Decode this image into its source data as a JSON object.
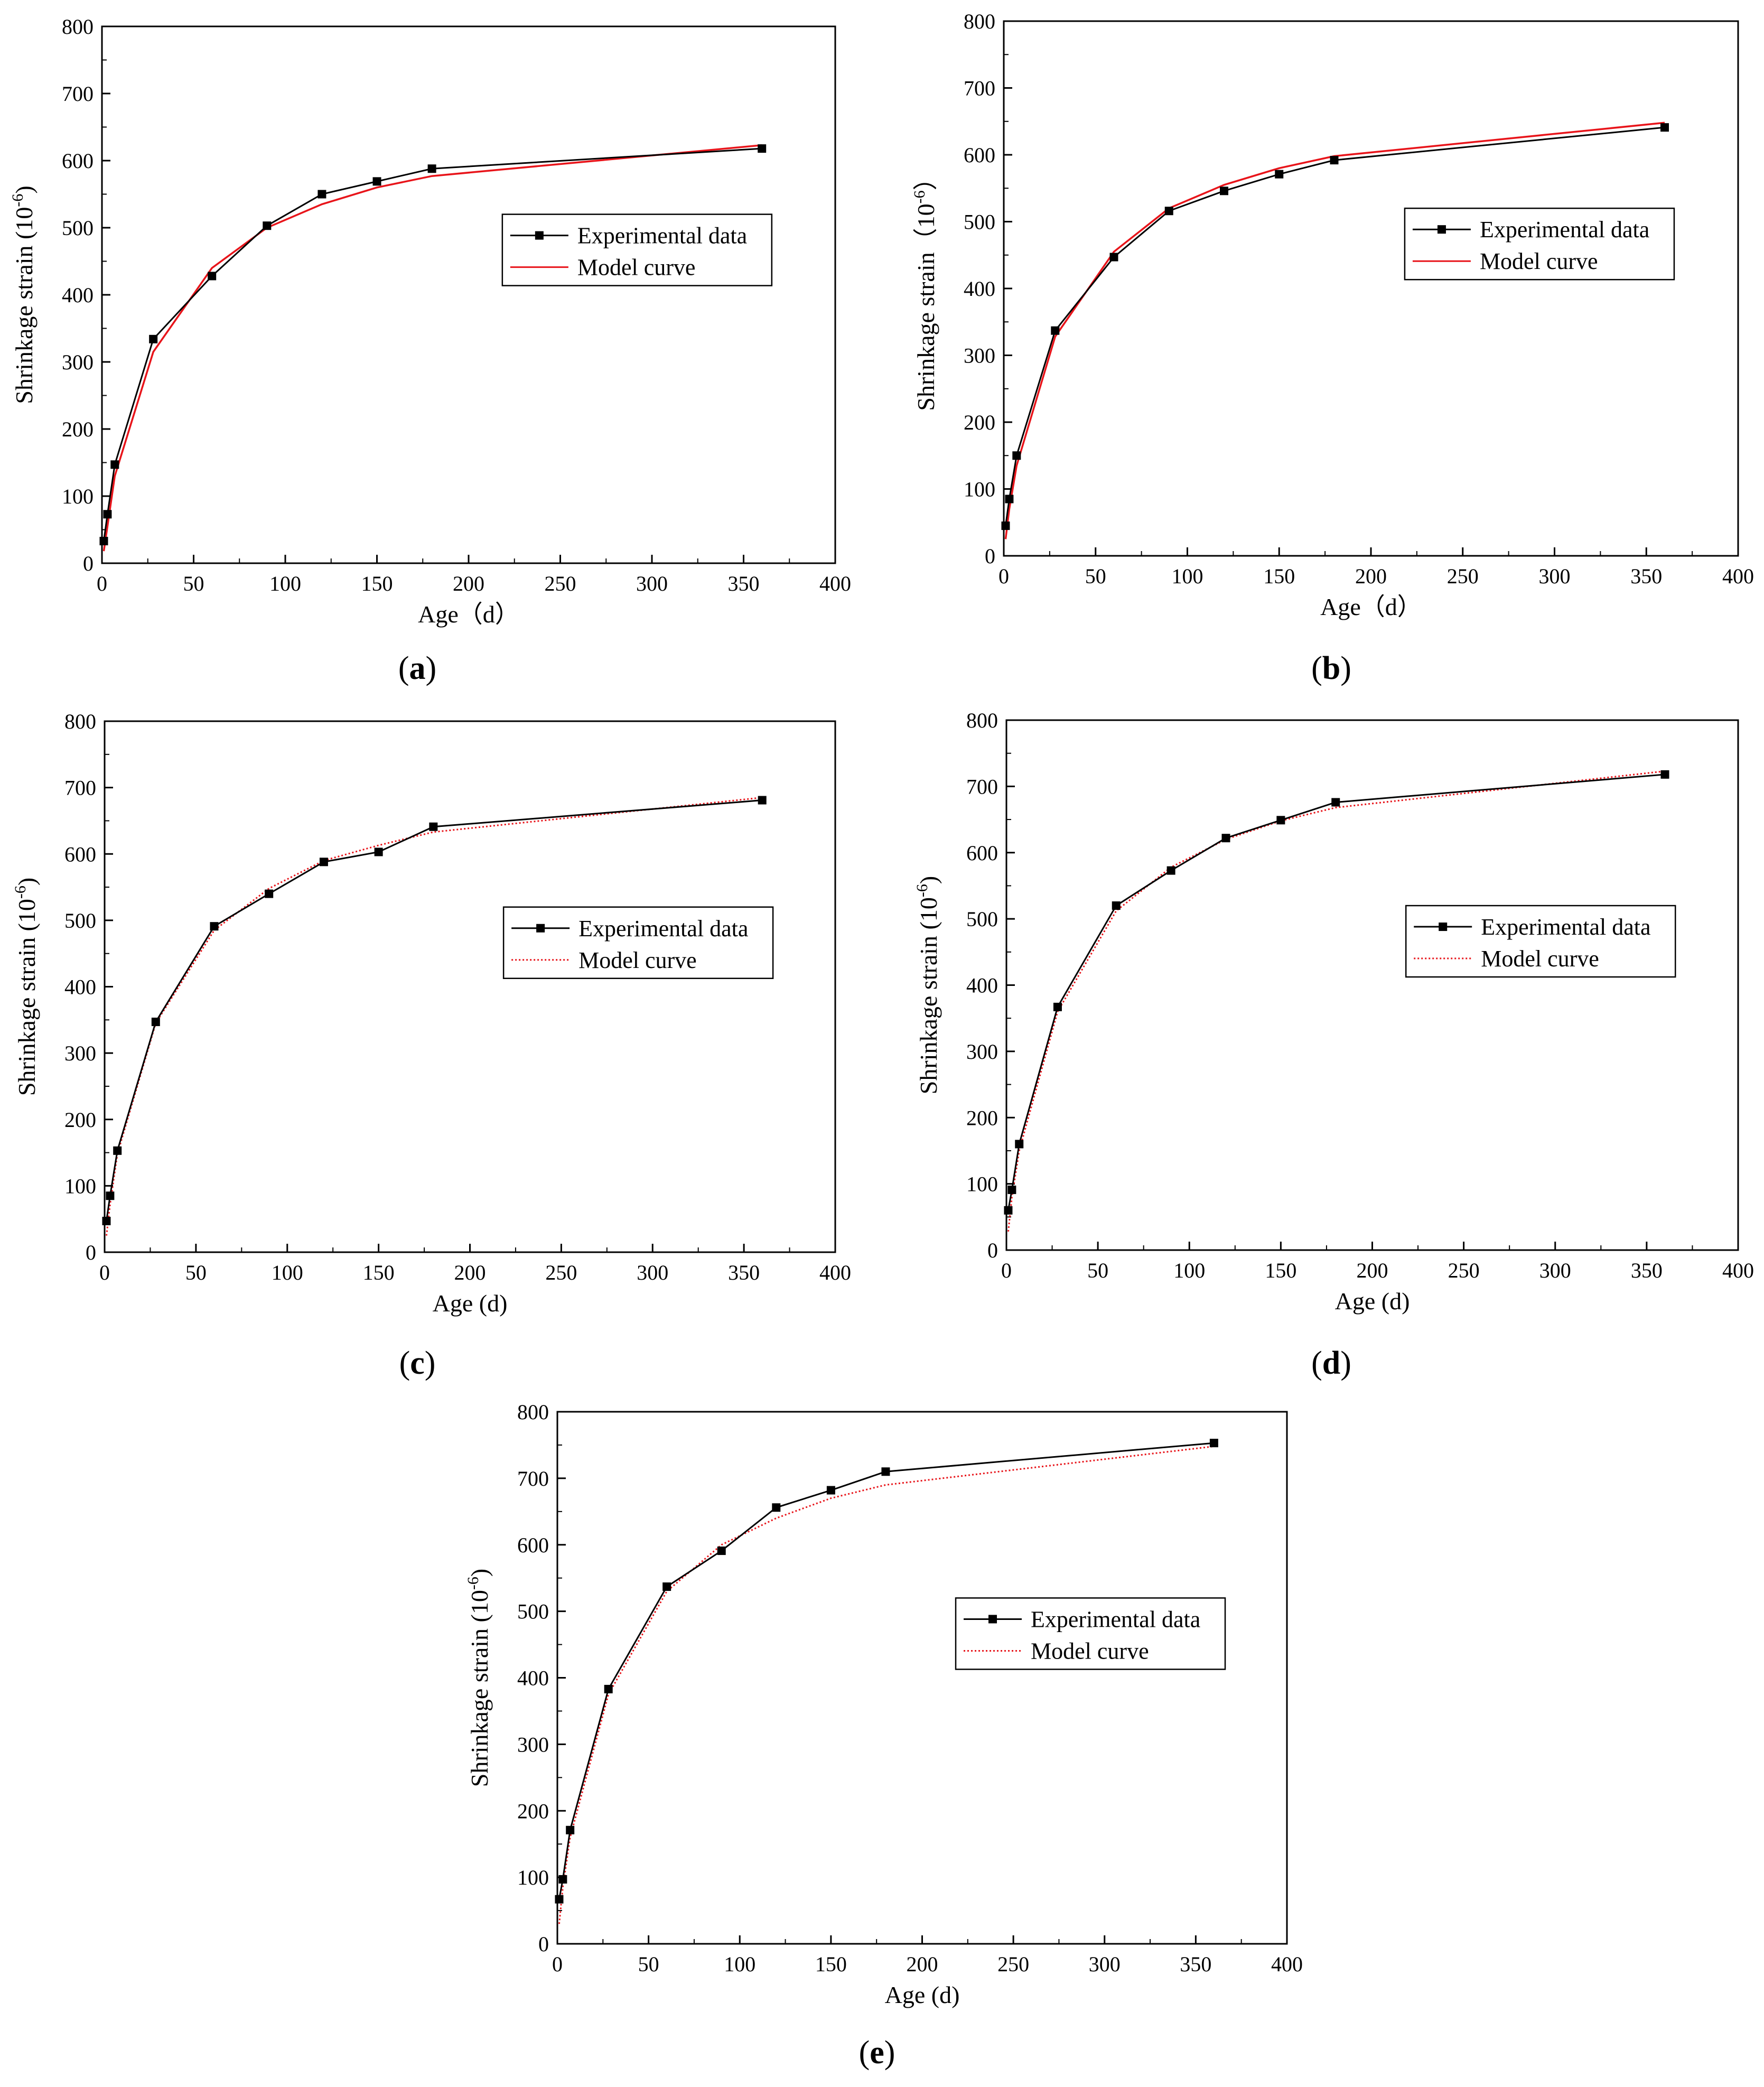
{
  "chart_data": [
    {
      "panel": "(a)",
      "type": "line",
      "xlabel": "Age（d）",
      "ylabel": "Shrinkage strain (10",
      "ylabel_sup": "-6",
      "ylabel_close": ")",
      "xlim": [
        0,
        400
      ],
      "ylim": [
        0,
        800
      ],
      "x_ticks": [
        "0",
        "50",
        "100",
        "150",
        "200",
        "250",
        "300",
        "350",
        "400"
      ],
      "y_ticks": [
        "0",
        "100",
        "200",
        "300",
        "400",
        "500",
        "600",
        "700",
        "800"
      ],
      "legend_position": "center-right",
      "model_style": "solid",
      "model_color": "#e8141a",
      "series": [
        {
          "name": "Experimental data",
          "x": [
            1,
            3,
            7,
            28,
            60,
            90,
            120,
            150,
            180,
            360
          ],
          "y": [
            33,
            73,
            147,
            334,
            428,
            503,
            550,
            569,
            588,
            618
          ]
        },
        {
          "name": "Model curve",
          "x": [
            1,
            3,
            7,
            28,
            60,
            90,
            120,
            150,
            180,
            360
          ],
          "y": [
            18,
            55,
            130,
            315,
            440,
            500,
            535,
            560,
            577,
            623
          ]
        }
      ]
    },
    {
      "panel": "(b)",
      "type": "line",
      "xlabel": "Age（d）",
      "ylabel": "Shrinkage strain（10",
      "ylabel_sup": "-6",
      "ylabel_close": "）",
      "xlim": [
        0,
        400
      ],
      "ylim": [
        0,
        800
      ],
      "x_ticks": [
        "0",
        "50",
        "100",
        "150",
        "200",
        "250",
        "300",
        "350",
        "400"
      ],
      "y_ticks": [
        "0",
        "100",
        "200",
        "300",
        "400",
        "500",
        "600",
        "700",
        "800"
      ],
      "legend_position": "center-right",
      "model_style": "solid",
      "model_color": "#e8141a",
      "series": [
        {
          "name": "Experimental data",
          "x": [
            1,
            3,
            7,
            28,
            60,
            90,
            120,
            150,
            180,
            360
          ],
          "y": [
            45,
            85,
            150,
            337,
            447,
            516,
            546,
            571,
            592,
            641
          ]
        },
        {
          "name": "Model curve",
          "x": [
            1,
            3,
            7,
            28,
            60,
            90,
            120,
            150,
            180,
            360
          ],
          "y": [
            25,
            70,
            135,
            328,
            455,
            520,
            555,
            580,
            598,
            648
          ]
        }
      ]
    },
    {
      "panel": "(c)",
      "type": "line",
      "xlabel": "Age (d)",
      "ylabel": "Shrinkage strain (10",
      "ylabel_sup": "-6",
      "ylabel_close": ")",
      "xlim": [
        0,
        400
      ],
      "ylim": [
        0,
        800
      ],
      "x_ticks": [
        "0",
        "50",
        "100",
        "150",
        "200",
        "250",
        "300",
        "350",
        "400"
      ],
      "y_ticks": [
        "0",
        "100",
        "200",
        "300",
        "400",
        "500",
        "600",
        "700",
        "800"
      ],
      "legend_position": "center-right",
      "model_style": "dotted",
      "model_color": "#e8141a",
      "series": [
        {
          "name": "Experimental data",
          "x": [
            1,
            3,
            7,
            28,
            60,
            90,
            120,
            150,
            180,
            360
          ],
          "y": [
            47,
            85,
            153,
            347,
            491,
            540,
            588,
            603,
            641,
            681
          ]
        },
        {
          "name": "Model curve",
          "x": [
            1,
            3,
            7,
            28,
            60,
            90,
            120,
            150,
            180,
            360
          ],
          "y": [
            25,
            72,
            148,
            345,
            485,
            548,
            590,
            613,
            633,
            685
          ]
        }
      ]
    },
    {
      "panel": "(d)",
      "type": "line",
      "xlabel": "Age (d)",
      "ylabel": "Shrinkage strain (10",
      "ylabel_sup": "-6",
      "ylabel_close": ")",
      "xlim": [
        0,
        400
      ],
      "ylim": [
        0,
        800
      ],
      "x_ticks": [
        "0",
        "50",
        "100",
        "150",
        "200",
        "250",
        "300",
        "350",
        "400"
      ],
      "y_ticks": [
        "0",
        "100",
        "200",
        "300",
        "400",
        "500",
        "600",
        "700",
        "800"
      ],
      "legend_position": "center-right",
      "model_style": "dotted",
      "model_color": "#e8141a",
      "series": [
        {
          "name": "Experimental data",
          "x": [
            1,
            3,
            7,
            28,
            60,
            90,
            120,
            150,
            180,
            360
          ],
          "y": [
            60,
            91,
            160,
            367,
            520,
            573,
            622,
            649,
            676,
            718
          ]
        },
        {
          "name": "Model curve",
          "x": [
            1,
            3,
            7,
            28,
            60,
            90,
            120,
            150,
            180,
            360
          ],
          "y": [
            28,
            80,
            150,
            360,
            512,
            578,
            620,
            648,
            668,
            723
          ]
        }
      ]
    },
    {
      "panel": "(e)",
      "type": "line",
      "xlabel": "Age (d)",
      "ylabel": "Shrinkage strain (10",
      "ylabel_sup": "-6",
      "ylabel_close": ")",
      "xlim": [
        0,
        400
      ],
      "ylim": [
        0,
        800
      ],
      "x_ticks": [
        "0",
        "50",
        "100",
        "150",
        "200",
        "250",
        "300",
        "350",
        "400"
      ],
      "y_ticks": [
        "0",
        "100",
        "200",
        "300",
        "400",
        "500",
        "600",
        "700",
        "800"
      ],
      "legend_position": "center-right",
      "model_style": "dotted",
      "model_color": "#e8141a",
      "series": [
        {
          "name": "Experimental data",
          "x": [
            1,
            3,
            7,
            28,
            60,
            90,
            120,
            150,
            180,
            360
          ],
          "y": [
            67,
            97,
            171,
            383,
            537,
            591,
            656,
            682,
            710,
            753
          ]
        },
        {
          "name": "Model curve",
          "x": [
            1,
            3,
            7,
            28,
            60,
            90,
            120,
            150,
            180,
            360
          ],
          "y": [
            30,
            85,
            160,
            375,
            530,
            600,
            640,
            670,
            690,
            748
          ]
        }
      ]
    }
  ]
}
